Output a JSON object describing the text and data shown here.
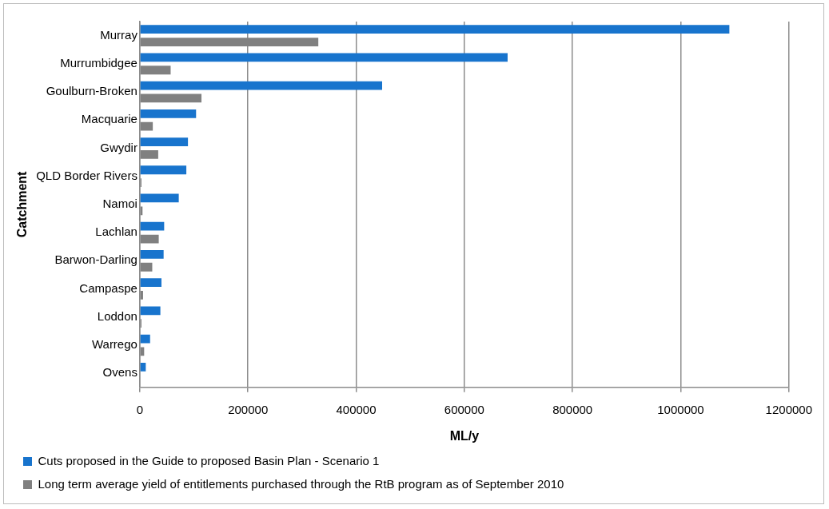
{
  "chart_data": {
    "type": "bar",
    "orientation": "horizontal",
    "xlabel": "ML/y",
    "ylabel": "Catchment",
    "categories": [
      "Murray",
      "Murrumbidgee",
      "Goulburn-Broken",
      "Macquarie",
      "Gwydir",
      "QLD Border Rivers",
      "Namoi",
      "Lachlan",
      "Barwon-Darling",
      "Campaspe",
      "Loddon",
      "Warrego",
      "Ovens"
    ],
    "series": [
      {
        "name": "Cuts proposed in the Guide to proposed Basin Plan - Scenario 1",
        "color": "#1874cd",
        "values": [
          1090000,
          680000,
          448000,
          104000,
          89000,
          86000,
          72000,
          45000,
          44000,
          40000,
          38000,
          19000,
          11000
        ]
      },
      {
        "name": "Long term average yield of entitlements purchased through the RtB program as of September 2010",
        "color": "#808080",
        "values": [
          330000,
          57000,
          114000,
          24000,
          34000,
          3000,
          5000,
          35000,
          23000,
          6000,
          3000,
          8000,
          0
        ]
      }
    ],
    "xlim": [
      0,
      1200000
    ],
    "xticks": [
      0,
      200000,
      400000,
      600000,
      800000,
      1000000,
      1200000
    ],
    "grid": "x",
    "legend": "bottom"
  }
}
